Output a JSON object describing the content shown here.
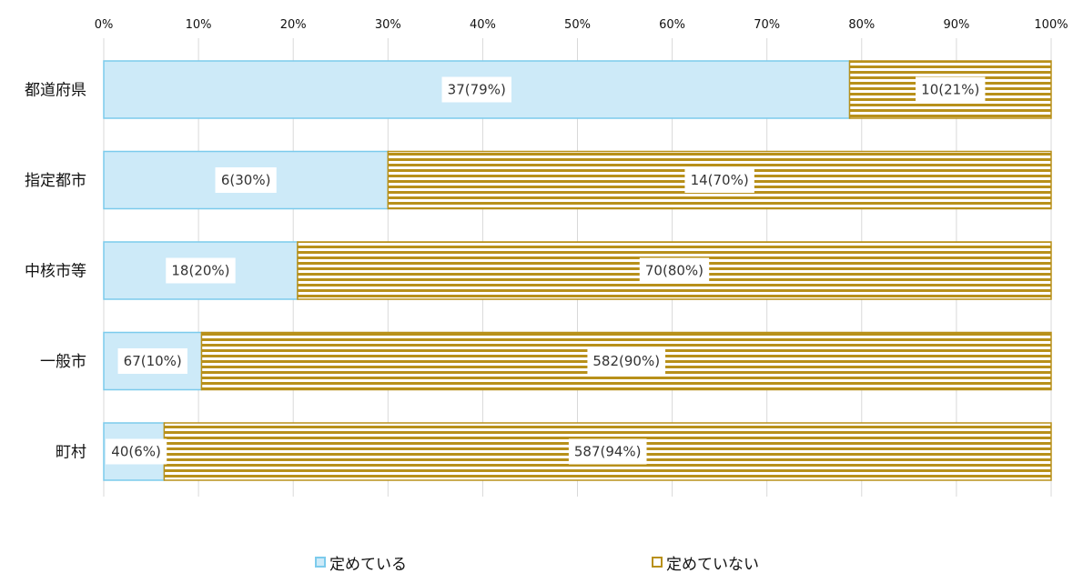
{
  "chart_data": {
    "type": "bar",
    "orientation": "horizontal",
    "stacked": "percent",
    "categories": [
      "都道府県",
      "指定都市",
      "中核市等",
      "一般市",
      "町村"
    ],
    "series": [
      {
        "name": "定めている",
        "values": [
          37,
          6,
          18,
          67,
          40
        ],
        "percents": [
          79,
          30,
          20,
          10,
          6
        ],
        "labels": [
          "37(79%)",
          "6(30%)",
          "18(20%)",
          "67(10%)",
          "40(6%)"
        ],
        "fill": "#cdeaf8",
        "stroke": "#7ccbec"
      },
      {
        "name": "定めていない",
        "values": [
          10,
          14,
          70,
          582,
          587
        ],
        "percents": [
          21,
          70,
          80,
          90,
          94
        ],
        "labels": [
          "10(21%)",
          "14(70%)",
          "70(80%)",
          "582(90%)",
          "587(94%)"
        ],
        "fill": "#ffffff",
        "stroke": "#b8901a"
      }
    ],
    "xaxis": {
      "ticks": [
        "0%",
        "10%",
        "20%",
        "30%",
        "40%",
        "50%",
        "60%",
        "70%",
        "80%",
        "90%",
        "100%"
      ],
      "range": [
        0,
        100
      ],
      "position": "top"
    },
    "grid": true,
    "legend": "bottom"
  }
}
